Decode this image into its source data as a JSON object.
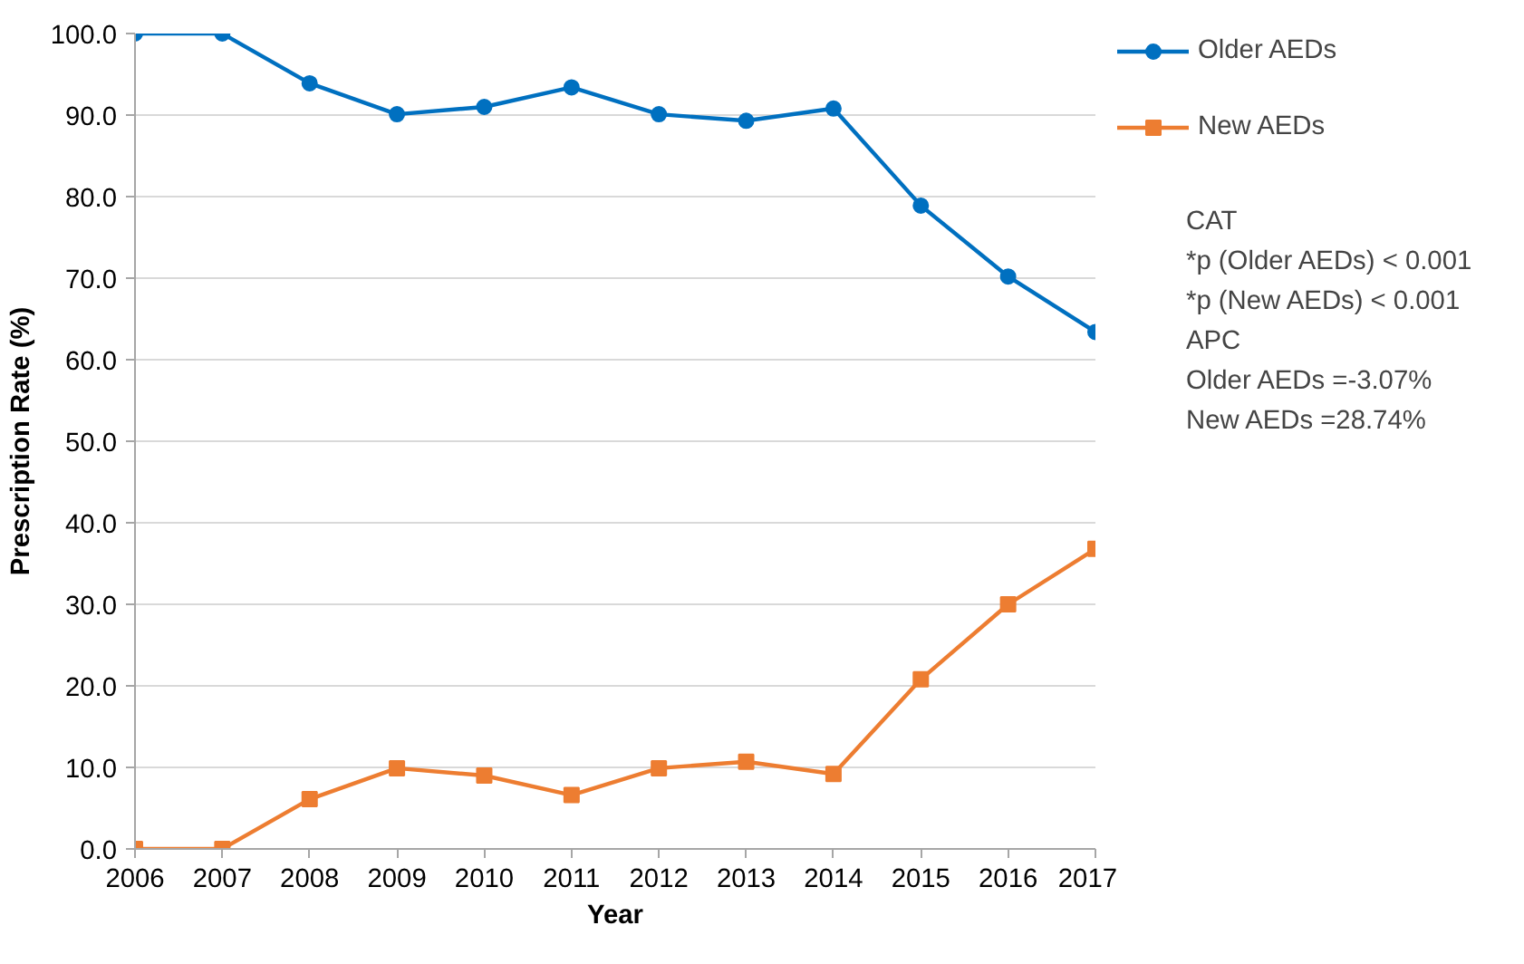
{
  "chart_data": {
    "type": "line",
    "xlabel": "Year",
    "ylabel": "Prescription Rate (%)",
    "x": [
      2006,
      2007,
      2008,
      2009,
      2010,
      2011,
      2012,
      2013,
      2014,
      2015,
      2016,
      2017
    ],
    "series": [
      {
        "name": "Older AEDs",
        "color": "#0070c0",
        "marker": "circle",
        "values": [
          100.0,
          100.0,
          93.9,
          90.1,
          91.0,
          93.4,
          90.1,
          89.3,
          90.8,
          78.9,
          70.2,
          63.4
        ]
      },
      {
        "name": "New AEDs",
        "color": "#ed7d31",
        "marker": "square",
        "values": [
          0.0,
          0.0,
          6.1,
          9.9,
          9.0,
          6.6,
          9.9,
          10.7,
          9.2,
          20.8,
          30.0,
          36.8
        ]
      }
    ],
    "xlim": [
      2006,
      2017
    ],
    "xticks": [
      2006,
      2007,
      2008,
      2009,
      2010,
      2011,
      2012,
      2013,
      2014,
      2015,
      2016,
      2017
    ],
    "ylim": [
      0,
      100
    ],
    "yticks": [
      {
        "value": 0,
        "label": "0.0"
      },
      {
        "value": 10,
        "label": "10.0"
      },
      {
        "value": 20,
        "label": "20.0"
      },
      {
        "value": 30,
        "label": "30.0"
      },
      {
        "value": 40,
        "label": "40.0"
      },
      {
        "value": 50,
        "label": "50.0"
      },
      {
        "value": 60,
        "label": "60.0"
      },
      {
        "value": 70,
        "label": "70.0"
      },
      {
        "value": 80,
        "label": "80.0"
      },
      {
        "value": 90,
        "label": "90.0"
      },
      {
        "value": 100,
        "label": "100.0"
      }
    ],
    "grid": "y",
    "legend": "top right",
    "line_style": "solid",
    "annotations": [
      "CAT",
      "*p (Older AEDs) < 0.001",
      "*p (New AEDs) < 0.001",
      "APC",
      "Older AEDs =-3.07%",
      "New AEDs =28.74%"
    ]
  }
}
